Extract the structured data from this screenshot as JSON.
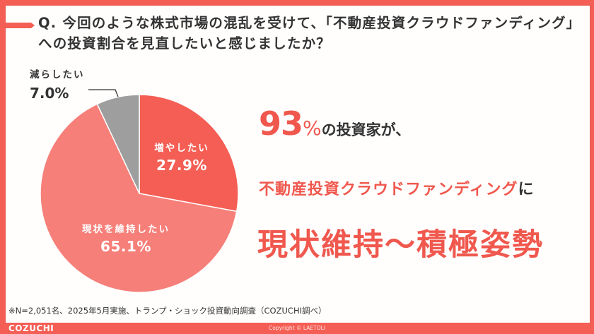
{
  "question": {
    "prefix": "Q.",
    "text": "今回のような株式市場の混乱を受けて、「不動産投資クラウドファンディング」への投資割合を見直したいと感じましたか？"
  },
  "pie": {
    "slices": [
      {
        "label": "増やしたい",
        "value": 27.9,
        "display": "27.9%",
        "color": "#f45e54"
      },
      {
        "label": "現状を維持したい",
        "value": 65.1,
        "display": "65.1%",
        "color": "#f67f79"
      },
      {
        "label": "減らしたい",
        "value": 7.0,
        "display": "7.0%",
        "color": "#9e9e9e"
      }
    ]
  },
  "headline": {
    "line1_number": "93",
    "line1_percent": "%",
    "line1_rest": "の投資家が、",
    "line2_accent": "不動産投資クラウドファンディング",
    "line2_suffix": "に",
    "line3": "現状維持〜積極姿勢"
  },
  "note": "※N=2,051名、2025年5月実施、トランプ・ショック投資動向調査（COZUCHI調べ）",
  "footer": {
    "brand": "COZUCHI",
    "copyright": "Copyright © LAETOLI"
  },
  "colors": {
    "accent": "#f45e54",
    "text": "#333333",
    "gray_slice": "#9e9e9e"
  },
  "chart_data": {
    "type": "pie",
    "title": "今回のような株式市場の混乱を受けて、「不動産投資クラウドファンディング」への投資割合を見直したいと感じましたか？",
    "categories": [
      "増やしたい",
      "現状を維持したい",
      "減らしたい"
    ],
    "values": [
      27.9,
      65.1,
      7.0
    ],
    "unit": "%",
    "start_angle": "12 o'clock, clockwise",
    "annotations": [
      "93%の投資家が、不動産投資クラウドファンディングに現状維持〜積極姿勢"
    ],
    "note": "※N=2,051名、2025年5月実施、トランプ・ショック投資動向調査（COZUCHI調べ）"
  }
}
